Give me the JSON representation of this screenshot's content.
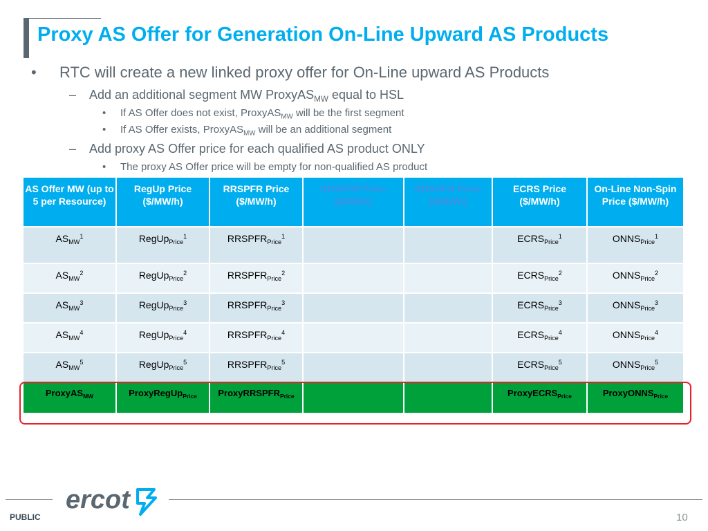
{
  "title": "Proxy AS Offer for Generation On-Line Upward AS Products",
  "bullets": {
    "l1": "RTC will create a new linked proxy offer for On-Line upward AS Products",
    "l2a_pre": "Add an additional segment MW ProxyAS",
    "l2a_sub": "MW",
    "l2a_post": " equal to HSL",
    "l3a_pre": "If AS Offer does not exist, ProxyAS",
    "l3a_sub": "MW",
    "l3a_post": " will be the first segment",
    "l3b_pre": "If AS Offer exists, ProxyAS",
    "l3b_sub": "MW",
    "l3b_post": " will be an additional segment",
    "l2b": "Add proxy AS Offer price for each qualified AS product ONLY",
    "l3c": "The proxy AS Offer price will be empty for non-qualified AS product",
    "dot": "•",
    "dash": "–"
  },
  "table": {
    "headers": [
      "AS Offer MW (up to 5 per Resource)",
      "RegUp Price ($/MW/h)",
      "RRSPFR Price ($/MW/h)",
      "RRSFFR Price ($/MWh)",
      "RRSUFR Price ($/MWh)",
      "ECRS Price ($/MW/h)",
      "On-Line Non-Spin Price ($/MW/h)"
    ],
    "row_labels": {
      "as": "AS",
      "as_sub": "MW",
      "regup": "RegUp",
      "rrspfr": "RRSPFR",
      "ecrs": "ECRS",
      "onns": "ONNS",
      "price_sub": "Price"
    },
    "row_numbers": [
      "1",
      "2",
      "3",
      "4",
      "5"
    ],
    "proxy": {
      "as": "ProxyAS",
      "as_sub": "MW",
      "regup": "ProxyRegUp",
      "regup_sub": "Price",
      "rrspfr": "ProxyRRSPFR",
      "rrspfr_sub": "Price",
      "ecrs": "ProxyECRS",
      "ecrs_sub": "Price",
      "onns": "ProxyONNS",
      "onns_sub": "Price"
    }
  },
  "footer": {
    "public": "PUBLIC",
    "page": "10",
    "logo_text": "ercot"
  },
  "colors": {
    "title": "#00aeef",
    "header_bg": "#00aeef",
    "proxy_row": "#00a13a",
    "highlight": "#e8202b"
  }
}
